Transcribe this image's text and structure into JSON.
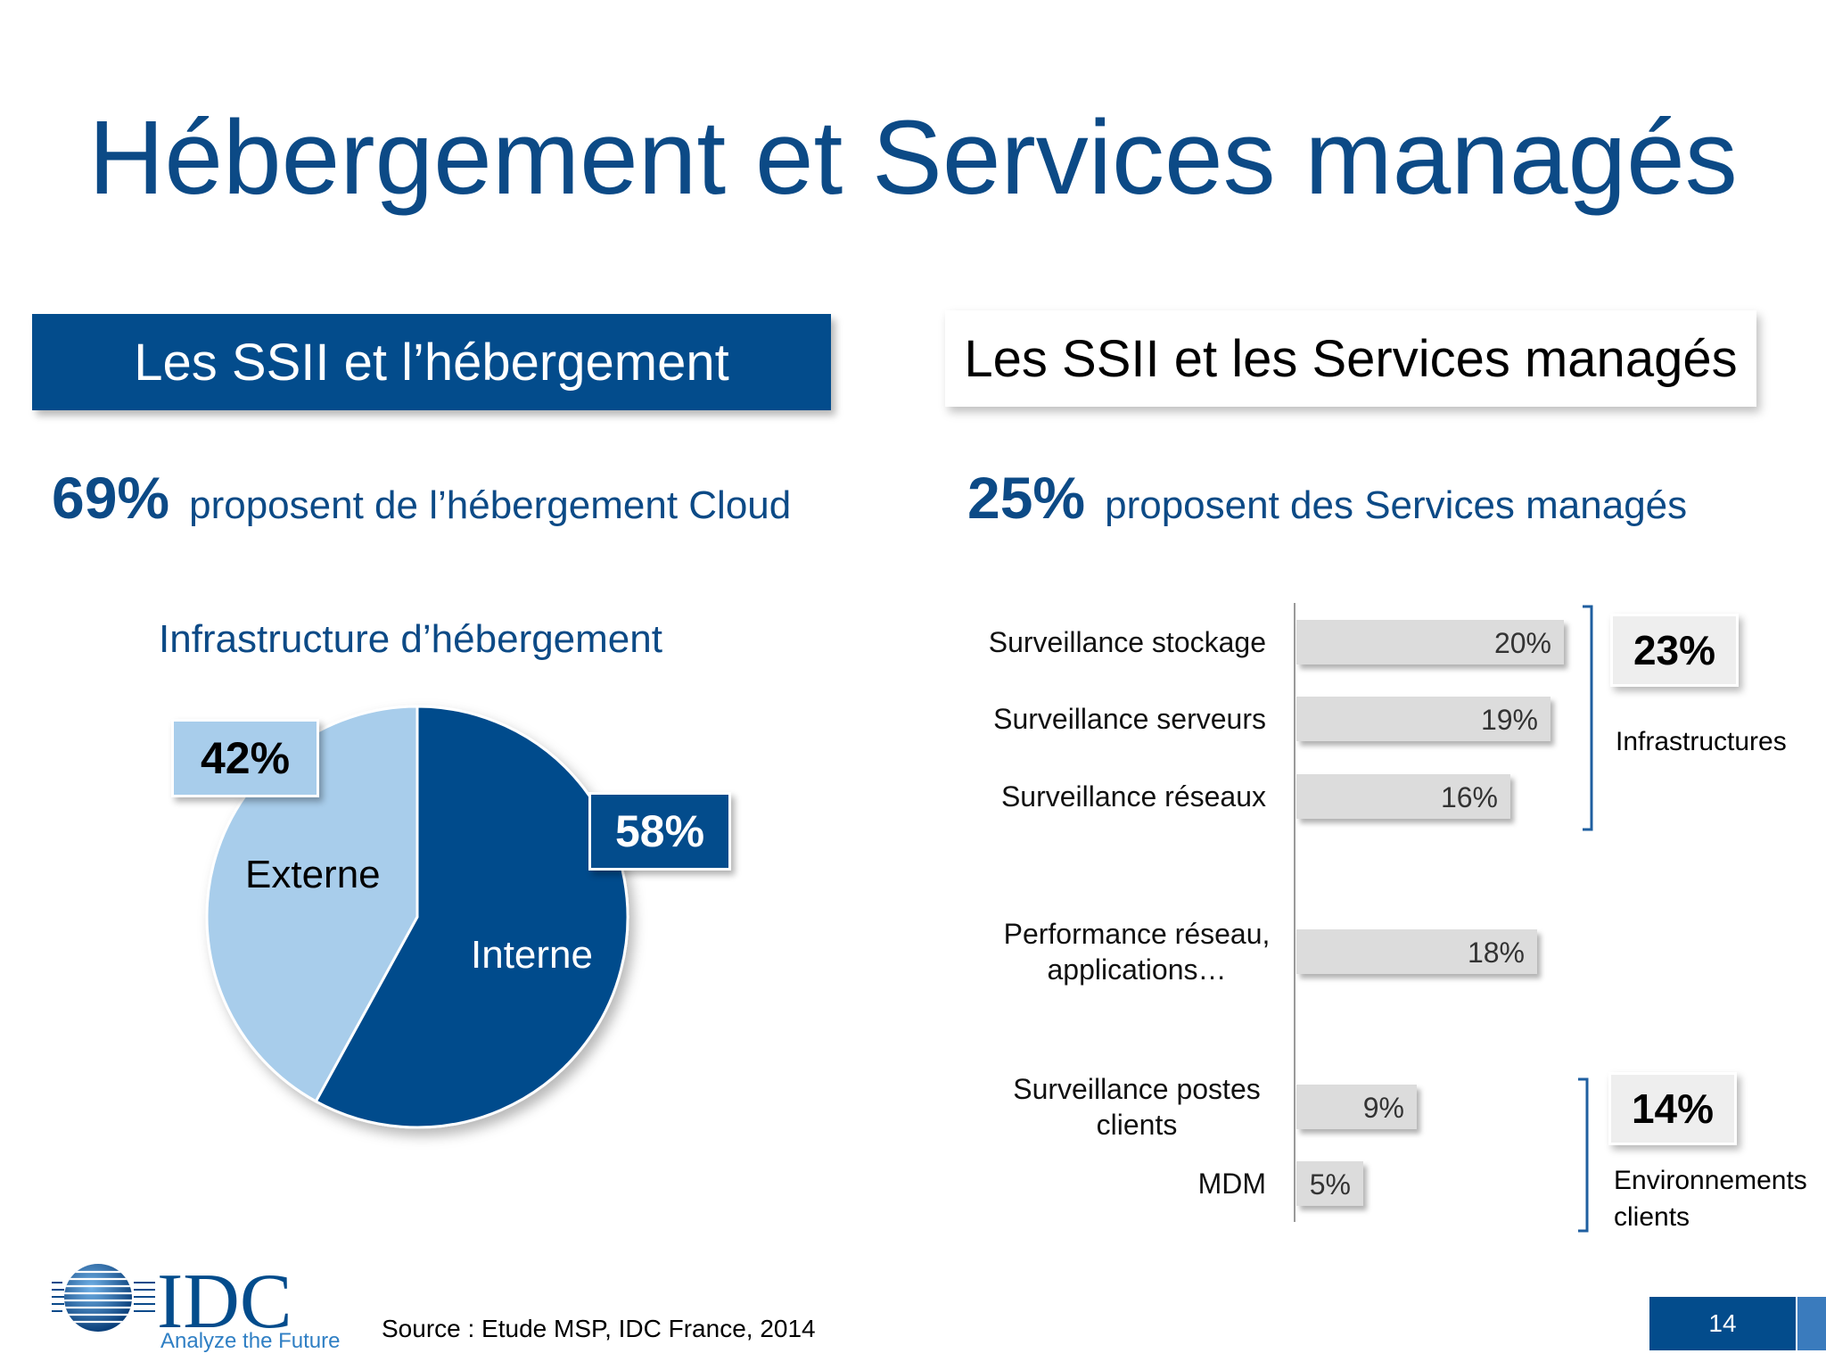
{
  "title": "Hébergement et Services managés",
  "left": {
    "header": "Les SSII et l’hébergement",
    "stat_value": "69%",
    "stat_text": "proposent de l’hébergement Cloud",
    "callouts": {
      "externe": "42%",
      "interne": "58%"
    }
  },
  "right": {
    "header": "Les SSII et les Services managés",
    "stat_value": "25%",
    "stat_text": "proposent des Services managés",
    "groups": [
      {
        "value": "23%",
        "label": "Infrastructures"
      },
      {
        "value": "14%",
        "label": "Environnements clients"
      }
    ]
  },
  "chart_data": [
    {
      "type": "pie",
      "title": "Infrastructure d’hébergement",
      "slices": [
        {
          "label": "Interne",
          "value": 58,
          "color": "#034c8c"
        },
        {
          "label": "Externe",
          "value": 42,
          "color": "#a8cdeb"
        }
      ]
    },
    {
      "type": "bar",
      "orientation": "horizontal",
      "categories": [
        [
          "Surveillance stockage"
        ],
        [
          "Surveillance serveurs"
        ],
        [
          "Surveillance réseaux"
        ],
        [
          "Performance réseau,",
          "applications…"
        ],
        [
          "Surveillance postes",
          "clients"
        ],
        [
          "MDM"
        ]
      ],
      "values": [
        20,
        19,
        16,
        18,
        9,
        5
      ],
      "labels": [
        "20%",
        "19%",
        "16%",
        "18%",
        "9%",
        "5%"
      ],
      "xlim": [
        0,
        20
      ],
      "bar_color": "#dcdcdc"
    }
  ],
  "footer": {
    "logo": "IDC",
    "tagline": "Analyze the Future",
    "source": "Source : Etude MSP, IDC France, 2014",
    "page_number": "14"
  }
}
